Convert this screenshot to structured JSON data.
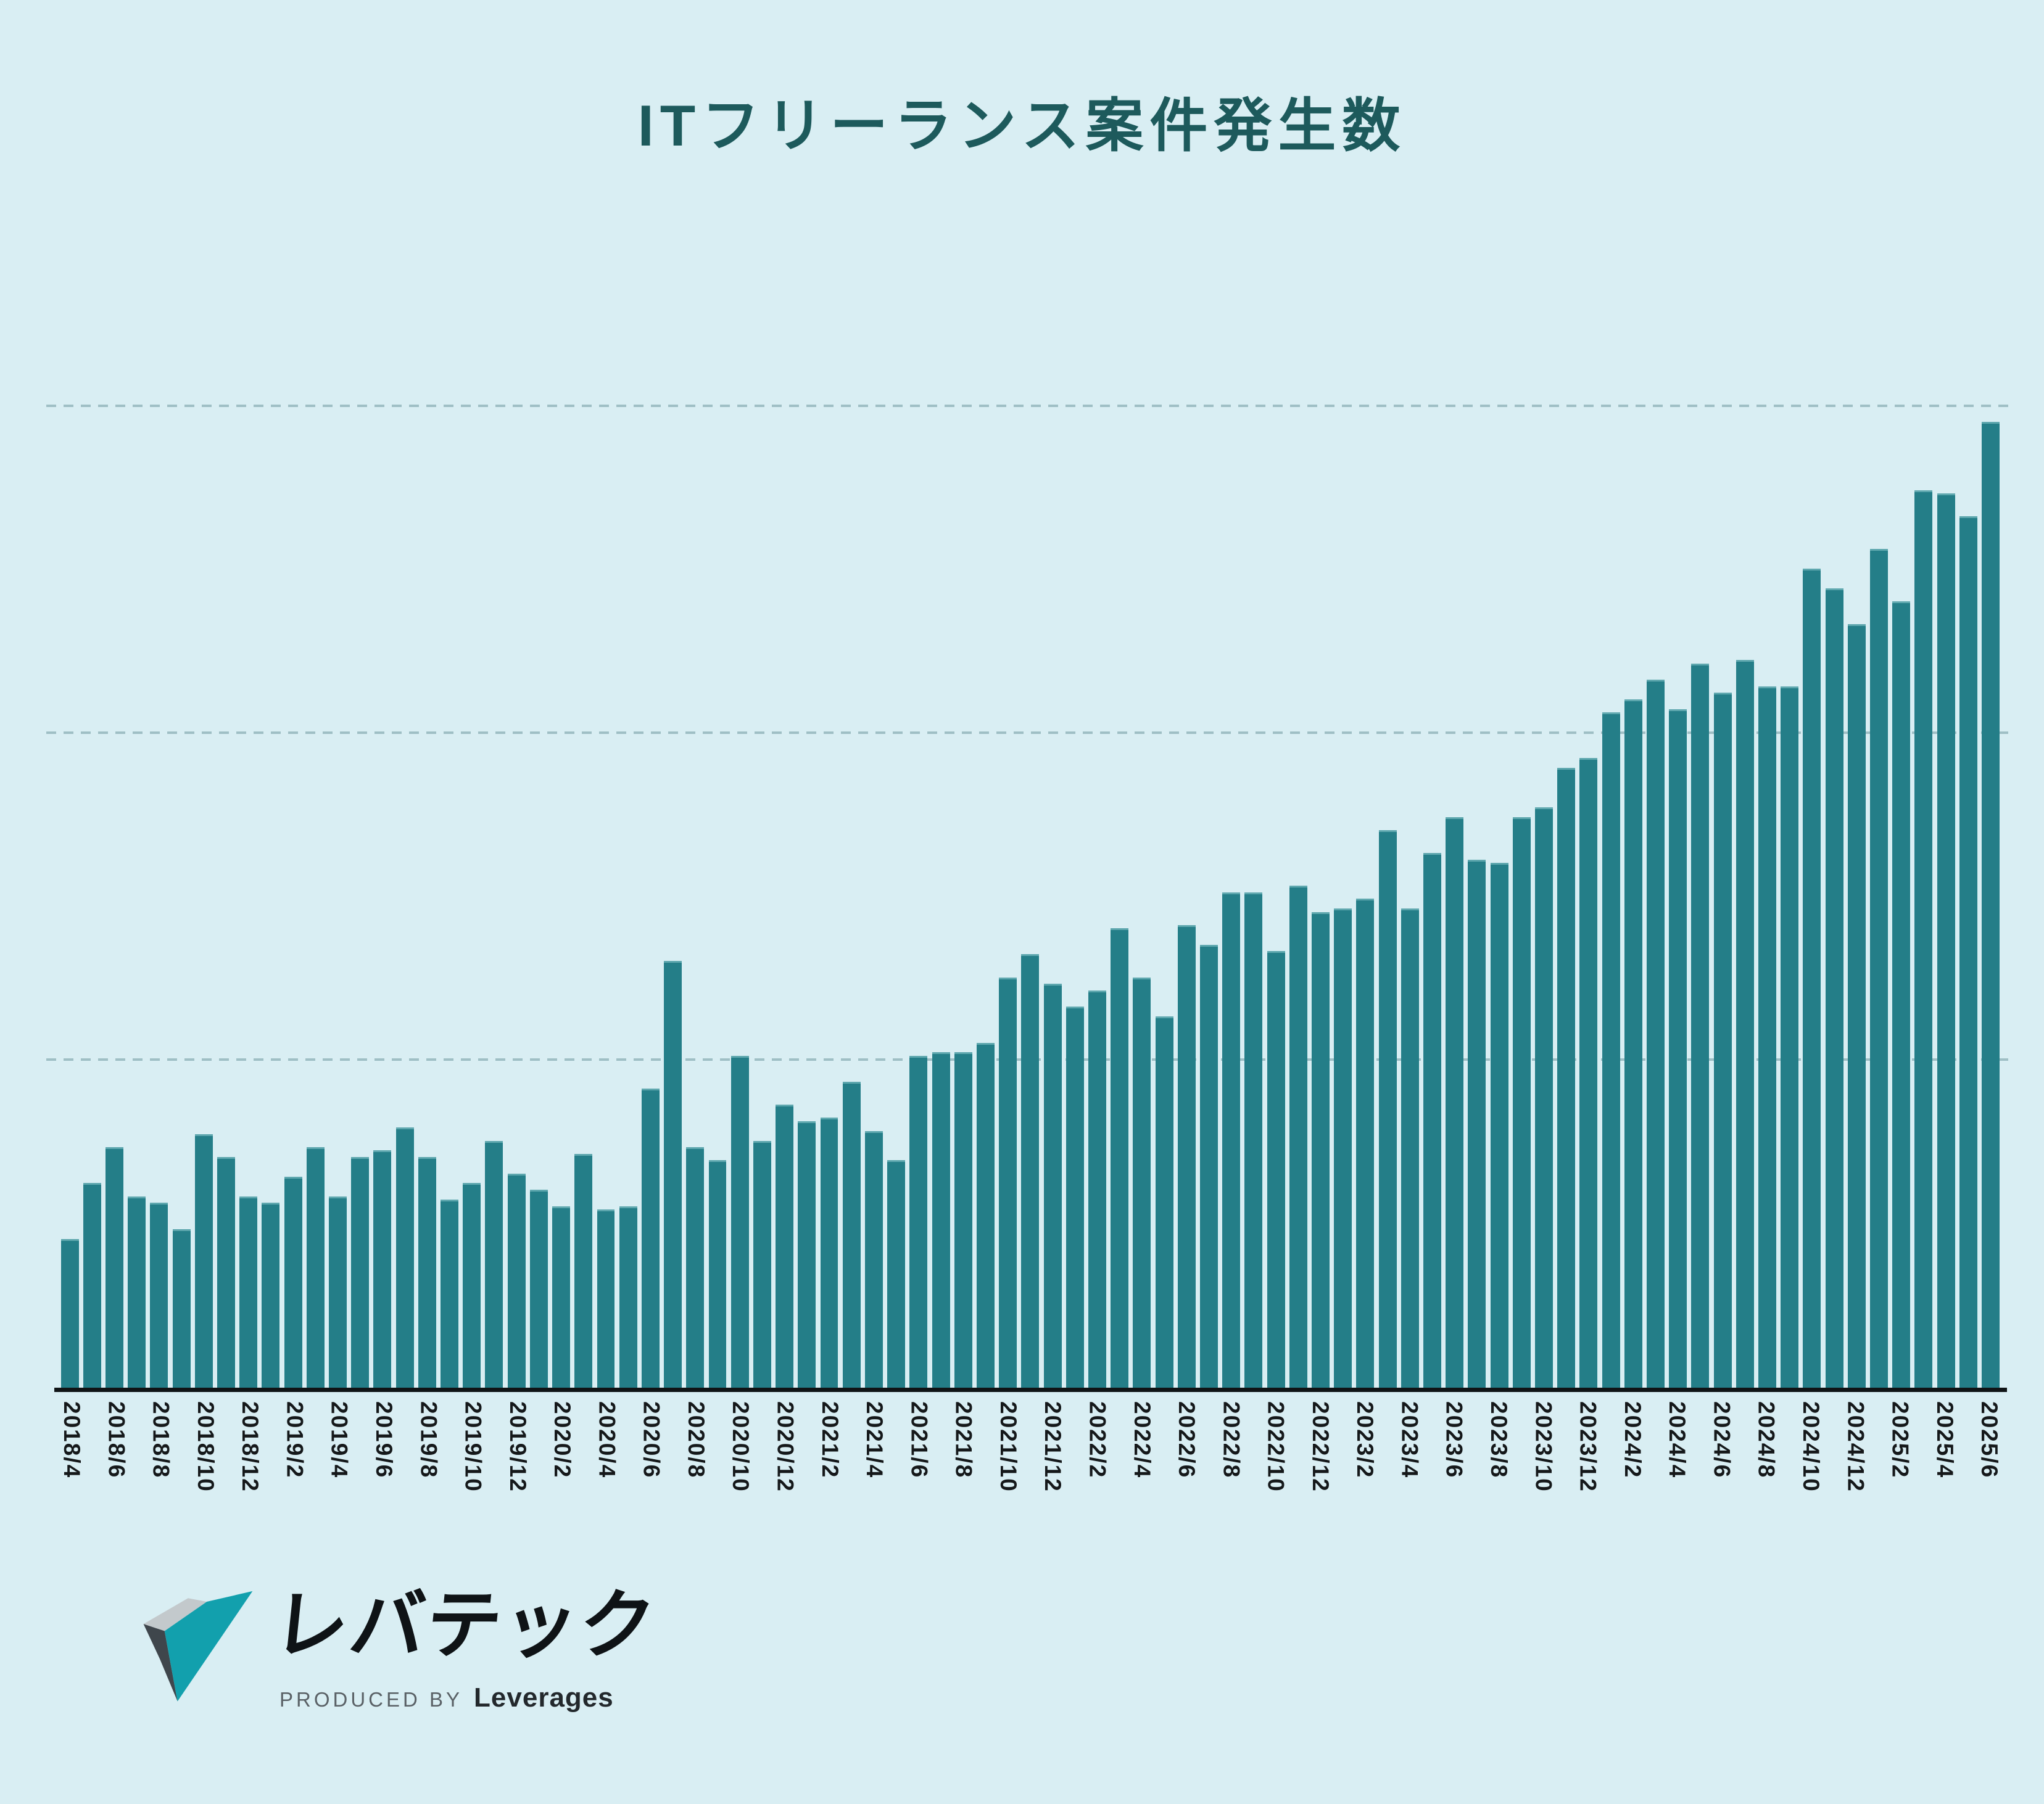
{
  "header": {
    "title": "ITフリーランス案件発生数",
    "title_color": "#1d5a5c"
  },
  "chart_data": {
    "type": "bar",
    "title": "ITフリーランス案件発生数",
    "xlabel": "",
    "ylabel": "",
    "y_axis_note": "y-axis has no tick labels; values are relative units where dashed gridlines sit at 1, 2 and 3",
    "ylim": [
      0,
      3.2
    ],
    "gridlines": [
      1,
      2,
      3
    ],
    "grid_style": "dashed",
    "legend": "none",
    "label_every": 2,
    "bar_color": "#247e88",
    "grid_color": "#9fbfc5",
    "axis_color": "#101416",
    "background_color": "#d9eef3",
    "categories": [
      "2018/4",
      "2018/5",
      "2018/6",
      "2018/7",
      "2018/8",
      "2018/9",
      "2018/10",
      "2018/11",
      "2018/12",
      "2019/1",
      "2019/2",
      "2019/3",
      "2019/4",
      "2019/5",
      "2019/6",
      "2019/7",
      "2019/8",
      "2019/9",
      "2019/10",
      "2019/11",
      "2019/12",
      "2020/1",
      "2020/2",
      "2020/3",
      "2020/4",
      "2020/5",
      "2020/6",
      "2020/7",
      "2020/8",
      "2020/9",
      "2020/10",
      "2020/11",
      "2020/12",
      "2021/1",
      "2021/2",
      "2021/3",
      "2021/4",
      "2021/5",
      "2021/6",
      "2021/7",
      "2021/8",
      "2021/9",
      "2021/10",
      "2021/11",
      "2021/12",
      "2022/1",
      "2022/2",
      "2022/3",
      "2022/4",
      "2022/5",
      "2022/6",
      "2022/7",
      "2022/8",
      "2022/9",
      "2022/10",
      "2022/11",
      "2022/12",
      "2023/1",
      "2023/2",
      "2023/3",
      "2023/4",
      "2023/5",
      "2023/6",
      "2023/7",
      "2023/8",
      "2023/9",
      "2023/10",
      "2023/11",
      "2023/12",
      "2024/1",
      "2024/2",
      "2024/3",
      "2024/4",
      "2024/5",
      "2024/6",
      "2024/7",
      "2024/8",
      "2024/9",
      "2024/10",
      "2024/11",
      "2024/12",
      "2025/1",
      "2025/2",
      "2025/3",
      "2025/4",
      "2025/5",
      "2025/6"
    ],
    "values": [
      0.45,
      0.62,
      0.73,
      0.58,
      0.56,
      0.48,
      0.77,
      0.7,
      0.58,
      0.56,
      0.64,
      0.73,
      0.58,
      0.7,
      0.72,
      0.79,
      0.7,
      0.57,
      0.62,
      0.75,
      0.65,
      0.6,
      0.55,
      0.71,
      0.54,
      0.55,
      0.91,
      1.3,
      0.73,
      0.69,
      1.01,
      0.75,
      0.86,
      0.81,
      0.82,
      0.93,
      0.78,
      0.69,
      1.01,
      1.02,
      1.02,
      1.05,
      1.25,
      1.32,
      1.23,
      1.16,
      1.21,
      1.4,
      1.25,
      1.13,
      1.41,
      1.35,
      1.51,
      1.51,
      1.33,
      1.53,
      1.45,
      1.46,
      1.49,
      1.7,
      1.46,
      1.63,
      1.74,
      1.61,
      1.6,
      1.74,
      1.77,
      1.89,
      1.92,
      2.06,
      2.1,
      2.16,
      2.07,
      2.21,
      2.12,
      2.22,
      2.14,
      2.14,
      2.5,
      2.44,
      2.33,
      2.56,
      2.4,
      2.74,
      2.73,
      2.66,
      2.95
    ],
    "x_tick_labels_visible": [
      "2018/4",
      "2018/6",
      "2018/8",
      "2018/10",
      "2018/12",
      "2019/2",
      "2019/4",
      "2019/6",
      "2019/8",
      "2019/10",
      "2019/12",
      "2020/2",
      "2020/4",
      "2020/6",
      "2020/8",
      "2020/10",
      "2020/12",
      "2021/2",
      "2021/4",
      "2021/6",
      "2021/8",
      "2021/10",
      "2021/12",
      "2022/2",
      "2022/4",
      "2022/6",
      "2022/8",
      "2022/10",
      "2022/12",
      "2023/2",
      "2023/4",
      "2023/6",
      "2023/8",
      "2023/10",
      "2023/12",
      "2024/2",
      "2024/4",
      "2024/6",
      "2024/8",
      "2024/10",
      "2024/12",
      "2025/2",
      "2025/4",
      "2025/6"
    ]
  },
  "footer": {
    "logo_name": "レバテック",
    "produced_by": "PRODUCED BY",
    "company": "Leverages",
    "logo_teal": "#12a0ad",
    "logo_dark_gray": "#3f464c",
    "logo_light_gray": "#c3c9cc"
  }
}
